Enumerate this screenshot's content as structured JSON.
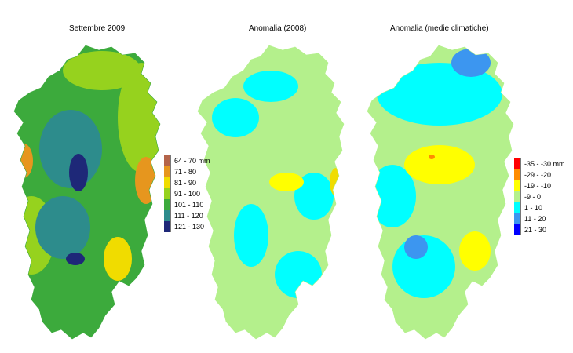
{
  "maps": [
    {
      "title": "Settembre 2009",
      "base_color": "#3caa3c",
      "legend": [
        {
          "label": "64 - 70 mm",
          "color": "#b4644a"
        },
        {
          "label": "71 - 80",
          "color": "#e6961e"
        },
        {
          "label": "81 - 90",
          "color": "#f0dc00"
        },
        {
          "label": "91 - 100",
          "color": "#96d21e"
        },
        {
          "label": "101 - 110",
          "color": "#3caa3c"
        },
        {
          "label": "111 - 120",
          "color": "#2d8c8c"
        },
        {
          "label": "121 - 130",
          "color": "#1e2878"
        }
      ]
    },
    {
      "title": "Anomalia (2008)",
      "base_color": "#b4f08c"
    },
    {
      "title": "Anomalia (medie climatiche)",
      "base_color": "#b4f08c",
      "legend": [
        {
          "label": "-35 - -30 mm",
          "color": "#ff0000"
        },
        {
          "label": "-29 - -20",
          "color": "#ff8c00"
        },
        {
          "label": "-19 - -10",
          "color": "#ffff00"
        },
        {
          "label": "-9 - 0",
          "color": "#b4f08c"
        },
        {
          "label": "1 - 10",
          "color": "#00ffff"
        },
        {
          "label": "11 - 20",
          "color": "#3c96f0"
        },
        {
          "label": "21 - 30",
          "color": "#0000ff"
        }
      ]
    }
  ]
}
